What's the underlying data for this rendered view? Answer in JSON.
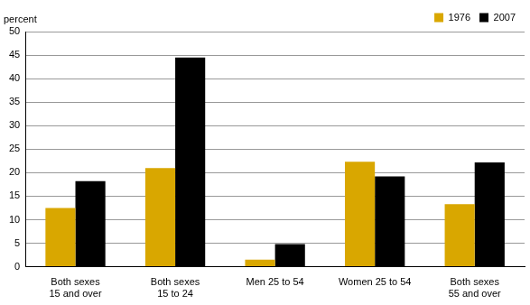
{
  "chart_data": {
    "type": "bar",
    "ylabel": "percent",
    "categories": [
      "Both sexes\n15 and over",
      "Both sexes\n15 to 24",
      "Men 25 to 54",
      "Women 25 to 54",
      "Both sexes\n55 and over"
    ],
    "series": [
      {
        "name": "1976",
        "color": "#d9a700",
        "values": [
          12.5,
          21.0,
          1.5,
          22.3,
          13.3
        ]
      },
      {
        "name": "2007",
        "color": "#000000",
        "values": [
          18.2,
          44.5,
          4.8,
          19.2,
          22.2
        ]
      }
    ],
    "ylim": [
      0,
      50
    ],
    "yticks": [
      0,
      5,
      10,
      15,
      20,
      25,
      30,
      35,
      40,
      45,
      50
    ],
    "grid": true,
    "legend": "top right"
  }
}
